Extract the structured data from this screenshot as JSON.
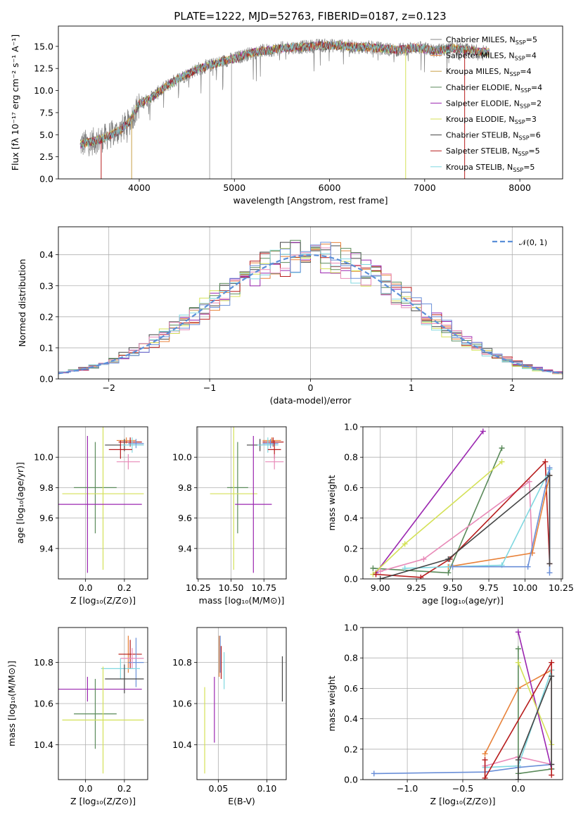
{
  "figure": {
    "title": "PLATE=1222, MJD=52763, FIBERID=0187, z=0.123"
  },
  "colors": {
    "Chabrier MILES": "#1f1f1f",
    "Salpeter MILES": "#e8823a",
    "Kroupa MILES": "#c9a14a",
    "Chabrier ELODIE": "#5a8a5a",
    "Salpeter ELODIE": "#9b27b0",
    "Kroupa ELODIE": "#d4e157",
    "Chabrier STELIB": "#444444",
    "Salpeter STELIB": "#b71c1c",
    "Kroupa STELIB": "#80d8e0",
    "pink": "#e88ab8",
    "blue": "#6a8fd8",
    "gaussian": "#5b8fd8"
  },
  "chart_data": [
    {
      "id": "spectrum",
      "type": "line",
      "xlabel": "wavelength [Angstrom, rest frame]",
      "ylabel": "Flux [fλ 10⁻¹⁷ erg cm⁻² s⁻¹ A⁻¹]",
      "xlim": [
        3150,
        8450
      ],
      "ylim": [
        0,
        17.3
      ],
      "xticks": [
        4000,
        5000,
        6000,
        7000,
        8000
      ],
      "yticks": [
        0.0,
        2.5,
        5.0,
        7.5,
        10.0,
        12.5,
        15.0
      ],
      "legend_position": "upper right",
      "legend": [
        {
          "name": "Chabrier MILES",
          "sub": "SSP",
          "n": 5,
          "color": "#888888"
        },
        {
          "name": "Salpeter MILES",
          "sub": "SSP",
          "n": 4,
          "color": "#e8823a"
        },
        {
          "name": "Kroupa MILES",
          "sub": "SSP",
          "n": 4,
          "color": "#c9a14a"
        },
        {
          "name": "Chabrier ELODIE",
          "sub": "SSP",
          "n": 4,
          "color": "#5a8a5a"
        },
        {
          "name": "Salpeter ELODIE",
          "sub": "SSP",
          "n": 2,
          "color": "#9b27b0"
        },
        {
          "name": "Kroupa ELODIE",
          "sub": "SSP",
          "n": 3,
          "color": "#d4e157"
        },
        {
          "name": "Chabrier STELIB",
          "sub": "SSP",
          "n": 6,
          "color": "#444444"
        },
        {
          "name": "Salpeter STELIB",
          "sub": "SSP",
          "n": 5,
          "color": "#b71c1c"
        },
        {
          "name": "Kroupa STELIB",
          "sub": "SSP",
          "n": 5,
          "color": "#80d8e0"
        }
      ],
      "continuum": [
        [
          3380,
          3.9
        ],
        [
          3500,
          4.2
        ],
        [
          3600,
          4.5
        ],
        [
          3700,
          5.0
        ],
        [
          3800,
          5.5
        ],
        [
          3900,
          6.5
        ],
        [
          4000,
          8.5
        ],
        [
          4100,
          9.0
        ],
        [
          4200,
          9.8
        ],
        [
          4300,
          10.6
        ],
        [
          4400,
          11.3
        ],
        [
          4500,
          11.8
        ],
        [
          4600,
          12.4
        ],
        [
          4700,
          12.7
        ],
        [
          4800,
          13.0
        ],
        [
          4900,
          13.4
        ],
        [
          5000,
          13.6
        ],
        [
          5100,
          14.0
        ],
        [
          5200,
          14.3
        ],
        [
          5300,
          14.5
        ],
        [
          5400,
          14.6
        ],
        [
          5500,
          14.8
        ],
        [
          5600,
          14.9
        ],
        [
          5700,
          14.9
        ],
        [
          5800,
          15.0
        ],
        [
          5900,
          15.1
        ],
        [
          6000,
          15.1
        ],
        [
          6100,
          15.1
        ],
        [
          6200,
          15.0
        ],
        [
          6300,
          14.9
        ],
        [
          6400,
          14.9
        ],
        [
          6500,
          14.8
        ],
        [
          6600,
          14.7
        ],
        [
          6700,
          14.6
        ],
        [
          6800,
          14.7
        ],
        [
          6900,
          14.9
        ],
        [
          7000,
          14.7
        ],
        [
          7100,
          14.5
        ],
        [
          7200,
          14.6
        ],
        [
          7300,
          14.8
        ],
        [
          7400,
          14.6
        ],
        [
          7500,
          14.5
        ],
        [
          7680,
          14.3
        ]
      ],
      "drops": [
        {
          "x": 3600,
          "color": "#b71c1c"
        },
        {
          "x": 3920,
          "color": "#c9a14a"
        },
        {
          "x": 4740,
          "color": "#aaaaaa"
        },
        {
          "x": 4970,
          "color": "#aaaaaa"
        },
        {
          "x": 6800,
          "color": "#d4e157"
        },
        {
          "x": 7420,
          "color": "#b71c1c"
        }
      ]
    },
    {
      "id": "residuals",
      "type": "histogram",
      "xlabel": "(data-model)/error",
      "ylabel": "Normed distribution",
      "xlim": [
        -2.5,
        2.5
      ],
      "ylim": [
        0,
        0.49
      ],
      "xticks": [
        -2,
        -1,
        0,
        1,
        2
      ],
      "yticks": [
        0.0,
        0.1,
        0.2,
        0.3,
        0.4
      ],
      "legend_position": "upper right",
      "legend_label": "𝒩(0, 1)",
      "gaussian": {
        "mu": 0,
        "sigma": 1
      },
      "bin_width": 0.1,
      "series_colors": [
        "#444444",
        "#e8823a",
        "#9b27b0",
        "#d4e157",
        "#5a8a5a",
        "#b71c1c",
        "#80d8e0",
        "#e88ab8",
        "#6a8fd8"
      ]
    },
    {
      "id": "age_vs_Z",
      "type": "errorbar",
      "xlabel": "Z [log₁₀(Z/Z⊙)]",
      "ylabel": "age  [log₁₀(age/yr)]",
      "xlim": [
        -0.14,
        0.32
      ],
      "ylim": [
        9.2,
        10.2
      ],
      "xticks": [
        0.0,
        0.2
      ],
      "yticks": [
        9.4,
        9.6,
        9.8,
        10.0
      ],
      "points": [
        {
          "x": 0.21,
          "y": 10.11,
          "xerr": 0.05,
          "yerr": 0.02,
          "color": "#e8823a"
        },
        {
          "x": 0.23,
          "y": 10.1,
          "xerr": 0.06,
          "yerr": 0.03,
          "color": "#b71c1c"
        },
        {
          "x": 0.26,
          "y": 10.09,
          "xerr": 0.04,
          "yerr": 0.03,
          "color": "#6a8fd8"
        },
        {
          "x": 0.2,
          "y": 10.08,
          "xerr": 0.1,
          "yerr": 0.04,
          "color": "#444444"
        },
        {
          "x": 0.24,
          "y": 10.08,
          "xerr": 0.06,
          "yerr": 0.05,
          "color": "#80d8e0"
        },
        {
          "x": 0.18,
          "y": 10.05,
          "xerr": 0.06,
          "yerr": 0.06,
          "color": "#b71c1c"
        },
        {
          "x": 0.22,
          "y": 9.97,
          "xerr": 0.06,
          "yerr": 0.05,
          "color": "#e88ab8"
        },
        {
          "x": 0.05,
          "y": 9.8,
          "xerr": 0.11,
          "yerr": 0.3,
          "color": "#5a8a5a"
        },
        {
          "x": 0.09,
          "y": 9.76,
          "xerr": 0.21,
          "yerr": 0.5,
          "color": "#d4e157"
        },
        {
          "x": 0.01,
          "y": 9.69,
          "xerr": 0.28,
          "yerr": 0.45,
          "color": "#9b27b0"
        }
      ]
    },
    {
      "id": "age_vs_mass",
      "type": "errorbar",
      "xlabel": "mass [log₁₀(M/M⊙)]",
      "ylabel": "",
      "xlim": [
        10.24,
        10.92
      ],
      "ylim": [
        9.2,
        10.2
      ],
      "xticks": [
        10.25,
        10.5,
        10.75
      ],
      "yticks": [
        9.4,
        9.6,
        9.8,
        10.0
      ],
      "points": [
        {
          "x": 10.81,
          "y": 10.11,
          "xerr": 0.07,
          "yerr": 0.02,
          "color": "#e8823a"
        },
        {
          "x": 10.82,
          "y": 10.1,
          "xerr": 0.08,
          "yerr": 0.03,
          "color": "#b71c1c"
        },
        {
          "x": 10.8,
          "y": 10.09,
          "xerr": 0.06,
          "yerr": 0.03,
          "color": "#6a8fd8"
        },
        {
          "x": 10.72,
          "y": 10.08,
          "xerr": 0.1,
          "yerr": 0.04,
          "color": "#444444"
        },
        {
          "x": 10.78,
          "y": 10.08,
          "xerr": 0.08,
          "yerr": 0.05,
          "color": "#80d8e0"
        },
        {
          "x": 10.83,
          "y": 10.05,
          "xerr": 0.05,
          "yerr": 0.06,
          "color": "#b71c1c"
        },
        {
          "x": 10.83,
          "y": 9.97,
          "xerr": 0.07,
          "yerr": 0.05,
          "color": "#e88ab8"
        },
        {
          "x": 10.55,
          "y": 9.8,
          "xerr": 0.08,
          "yerr": 0.3,
          "color": "#5a8a5a"
        },
        {
          "x": 10.52,
          "y": 9.76,
          "xerr": 0.18,
          "yerr": 0.5,
          "color": "#d4e157"
        },
        {
          "x": 10.67,
          "y": 9.69,
          "xerr": 0.14,
          "yerr": 0.45,
          "color": "#9b27b0"
        }
      ]
    },
    {
      "id": "mass_weight_vs_age",
      "type": "line",
      "xlabel": "age  [log₁₀(age/yr)]",
      "ylabel": "mass weight",
      "xlim": [
        8.88,
        10.26
      ],
      "ylim": [
        0.0,
        1.0
      ],
      "xticks": [
        9.0,
        9.25,
        9.5,
        9.75,
        10.0,
        10.25
      ],
      "yticks": [
        0.0,
        0.2,
        0.4,
        0.6,
        0.8,
        1.0
      ],
      "series": [
        {
          "color": "#9b27b0",
          "points": [
            [
              8.97,
              0.04
            ],
            [
              9.71,
              0.97
            ]
          ]
        },
        {
          "color": "#5a8a5a",
          "points": [
            [
              8.95,
              0.07
            ],
            [
              9.47,
              0.04
            ],
            [
              9.84,
              0.86
            ]
          ]
        },
        {
          "color": "#d4e157",
          "points": [
            [
              8.95,
              0.03
            ],
            [
              9.17,
              0.23
            ],
            [
              9.84,
              0.77
            ]
          ]
        },
        {
          "color": "#e88ab8",
          "points": [
            [
              9.0,
              0.05
            ],
            [
              9.3,
              0.13
            ],
            [
              10.03,
              0.64
            ],
            [
              10.05,
              0.17
            ]
          ]
        },
        {
          "color": "#b71c1c",
          "points": [
            [
              8.97,
              0.03
            ],
            [
              9.28,
              0.01
            ],
            [
              9.48,
              0.13
            ],
            [
              10.14,
              0.77
            ],
            [
              10.17,
              0.1
            ]
          ]
        },
        {
          "color": "#e8823a",
          "points": [
            [
              9.47,
              0.08
            ],
            [
              10.05,
              0.17
            ],
            [
              10.17,
              0.68
            ]
          ]
        },
        {
          "color": "#80d8e0",
          "points": [
            [
              9.17,
              0.07
            ],
            [
              9.48,
              0.08
            ],
            [
              9.84,
              0.09
            ],
            [
              10.17,
              0.72
            ]
          ]
        },
        {
          "color": "#6a8fd8",
          "points": [
            [
              9.5,
              0.08
            ],
            [
              10.02,
              0.08
            ],
            [
              10.17,
              0.73
            ],
            [
              10.17,
              0.04
            ]
          ]
        },
        {
          "color": "#444444",
          "points": [
            [
              9.0,
              0.0
            ],
            [
              9.47,
              0.13
            ],
            [
              10.17,
              0.68
            ],
            [
              10.17,
              0.1
            ]
          ]
        }
      ]
    },
    {
      "id": "mass_vs_Z",
      "type": "errorbar",
      "xlabel": "Z [log₁₀(Z/Z⊙)]",
      "ylabel": "mass [log₁₀(M/M⊙)]",
      "xlim": [
        -0.14,
        0.32
      ],
      "ylim": [
        10.23,
        10.97
      ],
      "xticks": [
        0.0,
        0.2
      ],
      "yticks": [
        10.4,
        10.6,
        10.8
      ],
      "points": [
        {
          "x": 0.22,
          "y": 10.84,
          "xerr": 0.05,
          "yerr": 0.09,
          "color": "#e8823a"
        },
        {
          "x": 0.23,
          "y": 10.84,
          "xerr": 0.06,
          "yerr": 0.07,
          "color": "#b71c1c"
        },
        {
          "x": 0.26,
          "y": 10.8,
          "xerr": 0.04,
          "yerr": 0.12,
          "color": "#6a8fd8"
        },
        {
          "x": 0.24,
          "y": 10.82,
          "xerr": 0.06,
          "yerr": 0.05,
          "color": "#e88ab8"
        },
        {
          "x": 0.18,
          "y": 10.77,
          "xerr": 0.1,
          "yerr": 0.05,
          "color": "#80d8e0"
        },
        {
          "x": 0.2,
          "y": 10.72,
          "xerr": 0.1,
          "yerr": 0.07,
          "color": "#444444"
        },
        {
          "x": 0.01,
          "y": 10.67,
          "xerr": 0.28,
          "yerr": 0.06,
          "color": "#9b27b0"
        },
        {
          "x": 0.05,
          "y": 10.55,
          "xerr": 0.11,
          "yerr": 0.17,
          "color": "#5a8a5a"
        },
        {
          "x": 0.09,
          "y": 10.52,
          "xerr": 0.21,
          "yerr": 0.26,
          "color": "#d4e157"
        }
      ]
    },
    {
      "id": "mass_vs_ebv",
      "type": "errorbar",
      "xlabel": "E(B-V)",
      "ylabel": "",
      "xlim": [
        0.028,
        0.12
      ],
      "ylim": [
        10.23,
        10.97
      ],
      "xticks": [
        0.05,
        0.1
      ],
      "yticks": [
        10.4,
        10.6,
        10.8
      ],
      "points": [
        {
          "x": 0.051,
          "y": 10.83,
          "xerr": 0.0,
          "yerr": 0.1,
          "color": "#e8823a"
        },
        {
          "x": 0.052,
          "y": 10.84,
          "xerr": 0.0,
          "yerr": 0.09,
          "color": "#6a8fd8"
        },
        {
          "x": 0.053,
          "y": 10.8,
          "xerr": 0.0,
          "yerr": 0.08,
          "color": "#b71c1c"
        },
        {
          "x": 0.056,
          "y": 10.76,
          "xerr": 0.0,
          "yerr": 0.09,
          "color": "#80d8e0"
        },
        {
          "x": 0.046,
          "y": 10.57,
          "xerr": 0.0,
          "yerr": 0.16,
          "color": "#9b27b0"
        },
        {
          "x": 0.036,
          "y": 10.47,
          "xerr": 0.0,
          "yerr": 0.21,
          "color": "#d4e157"
        },
        {
          "x": 0.116,
          "y": 10.72,
          "xerr": 0.0,
          "yerr": 0.11,
          "color": "#444444"
        }
      ]
    },
    {
      "id": "mass_weight_vs_Z",
      "type": "line",
      "xlabel": "Z [log₁₀(Z/Z⊙)]",
      "ylabel": "mass weight",
      "xlim": [
        -1.4,
        0.4
      ],
      "ylim": [
        0.0,
        1.0
      ],
      "xticks": [
        -1.0,
        -0.5,
        0.0
      ],
      "yticks": [
        0.0,
        0.2,
        0.4,
        0.6,
        0.8,
        1.0
      ],
      "series": [
        {
          "color": "#6a8fd8",
          "points": [
            [
              -1.3,
              0.04
            ],
            [
              -0.3,
              0.05
            ],
            [
              0.0,
              0.08
            ],
            [
              0.3,
              0.1
            ]
          ]
        },
        {
          "color": "#e8823a",
          "points": [
            [
              -0.3,
              0.17
            ],
            [
              0.0,
              0.6
            ],
            [
              0.3,
              0.72
            ]
          ]
        },
        {
          "color": "#e88ab8",
          "points": [
            [
              -0.3,
              0.09
            ],
            [
              0.0,
              0.15
            ],
            [
              0.3,
              0.1
            ]
          ]
        },
        {
          "color": "#80d8e0",
          "points": [
            [
              -0.3,
              0.08
            ],
            [
              0.0,
              0.09
            ],
            [
              0.3,
              0.72
            ]
          ]
        },
        {
          "color": "#9b27b0",
          "points": [
            [
              0.0,
              0.97
            ],
            [
              0.3,
              0.07
            ]
          ]
        },
        {
          "color": "#5a8a5a",
          "points": [
            [
              0.0,
              0.86
            ],
            [
              0.0,
              0.04
            ],
            [
              0.3,
              0.07
            ]
          ]
        },
        {
          "color": "#d4e157",
          "points": [
            [
              0.0,
              0.77
            ],
            [
              0.3,
              0.23
            ]
          ]
        },
        {
          "color": "#b71c1c",
          "points": [
            [
              -0.3,
              0.13
            ],
            [
              -0.3,
              0.01
            ],
            [
              0.3,
              0.77
            ],
            [
              0.3,
              0.03
            ]
          ]
        },
        {
          "color": "#444444",
          "points": [
            [
              0.0,
              0.0
            ],
            [
              0.0,
              0.13
            ],
            [
              0.3,
              0.68
            ],
            [
              0.3,
              0.1
            ]
          ]
        }
      ]
    }
  ]
}
